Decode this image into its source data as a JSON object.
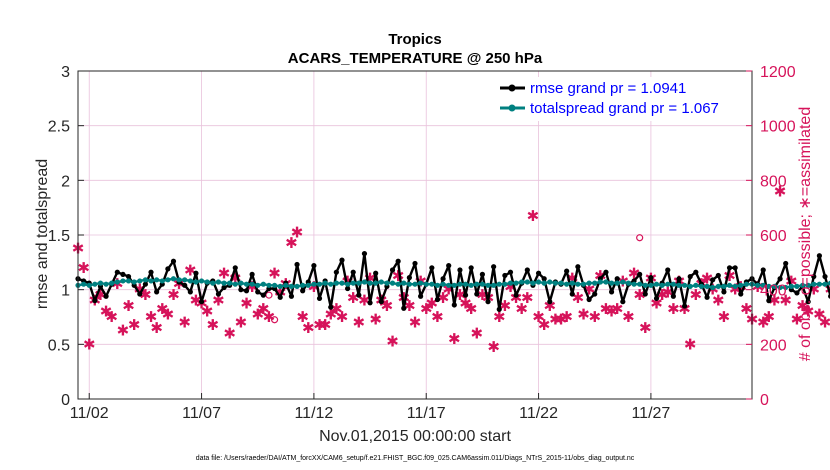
{
  "chart_data": {
    "type": "line",
    "title_lines": [
      "Tropics",
      "ACARS_TEMPERATURE @ 250 hPa"
    ],
    "xlabel": "Nov.01,2015 00:00:00 start",
    "ylabel_left": "rmse and totalspread",
    "ylabel_right": "# of obs: o=possible; ∗=assimilated",
    "footer": "data file: /Users/raeder/DAI/ATM_forcXX/CAM6_setup/f.e21.FHIST_BGC.f09_025.CAM6assim.011/Diags_NTrS_2015-11/obs_diag_output.nc",
    "xlim": [
      1.5,
      31.5
    ],
    "ylim_left": [
      0,
      3
    ],
    "ylim_right": [
      0,
      1200
    ],
    "x_ticks": [
      {
        "v": 2,
        "label": "11/02"
      },
      {
        "v": 7,
        "label": "11/07"
      },
      {
        "v": 12,
        "label": "11/12"
      },
      {
        "v": 17,
        "label": "11/17"
      },
      {
        "v": 22,
        "label": "11/22"
      },
      {
        "v": 27,
        "label": "11/27"
      }
    ],
    "y_ticks_left": [
      {
        "v": 0,
        "label": "0"
      },
      {
        "v": 0.5,
        "label": "0.5"
      },
      {
        "v": 1,
        "label": "1"
      },
      {
        "v": 1.5,
        "label": "1.5"
      },
      {
        "v": 2,
        "label": "2"
      },
      {
        "v": 2.5,
        "label": "2.5"
      },
      {
        "v": 3,
        "label": "3"
      }
    ],
    "y_ticks_right": [
      {
        "v": 0,
        "label": "0"
      },
      {
        "v": 200,
        "label": "200"
      },
      {
        "v": 400,
        "label": "400"
      },
      {
        "v": 600,
        "label": "600"
      },
      {
        "v": 800,
        "label": "800"
      },
      {
        "v": 1000,
        "label": "1000"
      },
      {
        "v": 1200,
        "label": "1200"
      }
    ],
    "grid": true,
    "legend": {
      "placement": "top-right",
      "entries": [
        "rmse grand pr = 1.0941",
        "totalspread grand pr = 1.067"
      ]
    },
    "series": [
      {
        "name": "rmse grand pr = 1.0941",
        "axis": "left",
        "color": "#000000",
        "x_start": 1.5,
        "dx": 0.25,
        "values": [
          1.1,
          1.08,
          1.06,
          0.9,
          1.03,
          0.94,
          1.05,
          1.16,
          1.14,
          1.12,
          1.04,
          0.96,
          1.05,
          1.16,
          0.98,
          1.05,
          1.19,
          1.26,
          1.07,
          1.04,
          0.98,
          1.15,
          0.89,
          1.06,
          1.08,
          0.96,
          1.02,
          1.04,
          1.2,
          1.0,
          0.99,
          1.14,
          0.98,
          0.95,
          1.01,
          1.01,
          0.93,
          1.06,
          0.94,
          1.23,
          0.99,
          1.07,
          1.22,
          0.92,
          1.08,
          0.84,
          1.16,
          1.27,
          1.01,
          1.16,
          0.95,
          1.33,
          0.88,
          1.15,
          0.89,
          1.03,
          1.18,
          1.26,
          0.83,
          1.11,
          1.24,
          0.94,
          1.05,
          1.2,
          0.91,
          1.1,
          1.22,
          0.86,
          1.18,
          0.95,
          1.2,
          0.96,
          1.14,
          0.89,
          1.21,
          0.82,
          1.13,
          1.16,
          0.95,
          1.06,
          1.18,
          1.04,
          1.15,
          1.1,
          0.89,
          1.07,
          1.05,
          1.17,
          0.96,
          1.21,
          1.04,
          0.91,
          0.96,
          1.1,
          1.16,
          0.98,
          1.1,
          0.89,
          1.05,
          1.08,
          1.14,
          0.96,
          1.11,
          0.92,
          1.06,
          1.18,
          0.94,
          1.1,
          0.85,
          1.12,
          1.16,
          1.05,
          0.93,
          1.09,
          1.13,
          0.98,
          1.2,
          1.2,
          0.96,
          1.07,
          1.1,
          1.05,
          1.18,
          0.9,
          1.02,
          1.1,
          1.24,
          1.0,
          0.97,
          1.03,
          0.89,
          1.12,
          1.31,
          1.12,
          0.94,
          1.05,
          1.16,
          1.17,
          1.0,
          1.03,
          1.15,
          1.19,
          0.92,
          1.1,
          1.09,
          0.96,
          1.05,
          1.09,
          1.15,
          1.03,
          0.91,
          1.16,
          1.28,
          0.99,
          1.15,
          1.09,
          1.1,
          1.25,
          1.15,
          1.24,
          1.35,
          1.34,
          1.31,
          1.17,
          1.21,
          1.12,
          1.1,
          1.4,
          1.16,
          1.12
        ]
      },
      {
        "name": "totalspread grand pr = 1.067",
        "axis": "left",
        "color": "#008080",
        "x_start": 1.5,
        "dx": 0.25,
        "values": [
          1.04,
          1.05,
          1.04,
          1.05,
          1.06,
          1.05,
          1.06,
          1.07,
          1.08,
          1.08,
          1.07,
          1.08,
          1.09,
          1.08,
          1.09,
          1.08,
          1.09,
          1.1,
          1.09,
          1.09,
          1.08,
          1.07,
          1.08,
          1.07,
          1.06,
          1.07,
          1.06,
          1.06,
          1.05,
          1.06,
          1.05,
          1.05,
          1.04,
          1.05,
          1.04,
          1.04,
          1.03,
          1.04,
          1.03,
          1.03,
          1.04,
          1.04,
          1.05,
          1.05,
          1.06,
          1.05,
          1.06,
          1.06,
          1.05,
          1.06,
          1.06,
          1.07,
          1.06,
          1.06,
          1.07,
          1.06,
          1.06,
          1.05,
          1.06,
          1.05,
          1.05,
          1.06,
          1.05,
          1.05,
          1.04,
          1.05,
          1.04,
          1.04,
          1.05,
          1.05,
          1.04,
          1.05,
          1.05,
          1.04,
          1.04,
          1.05,
          1.05,
          1.06,
          1.06,
          1.07,
          1.07,
          1.06,
          1.07,
          1.06,
          1.07,
          1.06,
          1.06,
          1.05,
          1.06,
          1.05,
          1.05,
          1.06,
          1.06,
          1.07,
          1.07,
          1.06,
          1.06,
          1.07,
          1.06,
          1.05,
          1.05,
          1.04,
          1.04,
          1.05,
          1.04,
          1.05,
          1.05,
          1.04,
          1.04,
          1.03,
          1.04,
          1.03,
          1.03,
          1.02,
          1.03,
          1.03,
          1.04,
          1.03,
          1.04,
          1.05,
          1.05,
          1.04,
          1.04,
          1.03,
          1.03,
          1.02,
          1.02,
          1.03,
          1.03,
          1.04,
          1.04,
          1.05,
          1.05,
          1.05,
          1.06,
          1.06,
          1.05,
          1.05,
          1.04,
          1.04,
          1.03,
          1.04,
          1.03,
          1.03,
          1.02,
          1.02,
          1.03,
          1.03,
          1.04,
          1.04,
          1.05,
          1.05,
          1.06,
          1.06,
          1.05,
          1.06,
          1.07,
          1.08,
          1.09,
          1.1,
          1.11,
          1.12,
          1.13,
          1.12,
          1.11,
          1.12,
          1.13,
          1.11,
          1.1,
          1.1,
          1.09,
          1.09
        ]
      }
    ],
    "obs": {
      "axis": "right",
      "color": "#d6135a",
      "x_start": 1.5,
      "dx": 0.25,
      "assimilated": [
        550,
        480,
        200,
        360,
        380,
        320,
        300,
        420,
        250,
        340,
        270,
        400,
        380,
        300,
        260,
        330,
        310,
        380,
        420,
        280,
        470,
        360,
        350,
        320,
        270,
        360,
        460,
        240,
        440,
        280,
        350,
        410,
        310,
        330,
        300,
        460,
        390,
        420,
        570,
        610,
        300,
        260,
        410,
        270,
        270,
        310,
        330,
        300,
        430,
        370,
        280,
        360,
        440,
        290,
        360,
        340,
        210,
        450,
        370,
        340,
        280,
        430,
        330,
        350,
        300,
        370,
        400,
        220,
        380,
        350,
        330,
        240,
        380,
        370,
        190,
        300,
        340,
        410,
        370,
        330,
        370,
        670,
        300,
        270,
        340,
        290,
        290,
        300,
        440,
        370,
        310,
        400,
        300,
        450,
        330,
        320,
        330,
        430,
        300,
        460,
        380,
        260,
        440,
        350,
        380,
        390,
        330,
        430,
        330,
        200,
        380,
        420,
        440,
        400,
        360,
        300,
        450,
        400,
        410,
        330,
        290,
        410,
        280,
        300,
        360,
        760,
        360,
        430,
        290,
        340,
        320,
        400,
        310,
        280,
        400,
        460,
        360,
        340,
        260,
        330,
        360,
        580,
        270,
        430,
        340,
        190,
        410,
        350,
        280,
        300,
        240,
        440,
        430,
        360,
        310,
        390,
        220,
        340,
        340,
        320,
        400,
        360,
        560,
        300,
        360,
        430,
        260,
        320,
        340,
        690,
        410,
        290,
        280,
        310,
        360,
        360,
        270,
        340
      ],
      "possible": [
        [
          10,
          380
        ],
        [
          10.25,
          290
        ],
        [
          26.5,
          590
        ]
      ]
    }
  }
}
